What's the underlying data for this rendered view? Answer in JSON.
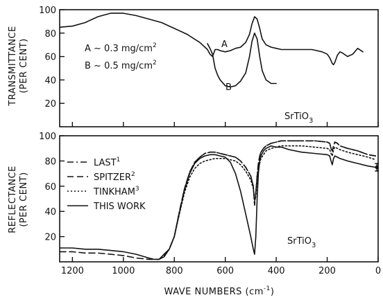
{
  "chart_data": [
    {
      "type": "line",
      "ylabel_line1": "TRANSMITTANCE",
      "ylabel_line2": "(PER CENT)",
      "ylim": [
        0,
        100
      ],
      "yticks": [
        20,
        40,
        60,
        80,
        100
      ],
      "xlim": [
        1250,
        0
      ],
      "annotations": {
        "a_text": "A ~ 0.3 mg/cm",
        "b_text": "B ~ 0.5 mg/cm",
        "superscript": "2",
        "sample": "SrTiO",
        "sample_sub": "3",
        "curve_a_label": "A",
        "curve_b_label": "B"
      },
      "series": [
        {
          "name": "A",
          "x": [
            1250,
            1200,
            1150,
            1100,
            1050,
            1000,
            950,
            900,
            850,
            800,
            750,
            700,
            670,
            660,
            650,
            640,
            630,
            620,
            600,
            580,
            560,
            540,
            520,
            505,
            495,
            485,
            475,
            465,
            455,
            440,
            420,
            400,
            380,
            360,
            340,
            320,
            300,
            280,
            260,
            240,
            220,
            200,
            190,
            180,
            175,
            170,
            160,
            150,
            140,
            120,
            100,
            80,
            60
          ],
          "y": [
            85,
            86,
            89,
            94,
            97,
            97,
            95,
            92,
            89,
            84,
            79,
            72,
            66,
            62,
            60,
            66,
            66,
            65,
            64,
            65,
            67,
            68,
            72,
            79,
            88,
            94,
            92,
            84,
            75,
            70,
            68,
            67,
            66,
            66,
            66,
            66,
            66,
            66,
            66,
            65,
            64,
            62,
            59,
            54,
            53,
            55,
            61,
            64,
            63,
            60,
            62,
            67,
            64
          ]
        },
        {
          "name": "B",
          "x": [
            670,
            660,
            650,
            640,
            630,
            620,
            600,
            580,
            560,
            540,
            520,
            505,
            495,
            485,
            475,
            465,
            455,
            440,
            420,
            400
          ],
          "y": [
            71,
            67,
            62,
            50,
            44,
            40,
            35,
            34,
            35,
            39,
            46,
            60,
            73,
            80,
            75,
            60,
            48,
            40,
            37,
            37
          ]
        }
      ]
    },
    {
      "type": "line",
      "ylabel_line1": "REFLECTANCE",
      "ylabel_line2": "(PER CENT)",
      "xlabel": "WAVE NUMBERS (cm",
      "xlabel_sup": "-1",
      "xlabel_end": ")",
      "ylim": [
        0,
        100
      ],
      "yticks": [
        20,
        40,
        60,
        80,
        100
      ],
      "xlim": [
        1250,
        0
      ],
      "xticks": [
        1200,
        1000,
        800,
        600,
        400,
        200,
        0
      ],
      "sample": "SrTiO",
      "sample_sub": "3",
      "legend_placement": "left",
      "series": [
        {
          "name": "LAST",
          "name_sup": "1",
          "style": "dash-dot",
          "x": [
            850,
            820,
            800,
            780,
            760,
            740,
            720,
            700,
            680,
            660,
            640,
            620,
            600,
            580,
            560,
            540,
            520,
            500,
            490,
            485,
            480,
            475,
            470,
            465,
            460,
            450,
            440,
            420,
            400,
            380,
            350,
            300,
            250,
            200,
            190,
            185,
            180,
            175,
            170,
            160,
            150,
            120,
            80,
            40,
            10
          ],
          "y": [
            4,
            10,
            20,
            40,
            58,
            71,
            79,
            83,
            86,
            87,
            87,
            86,
            85,
            84,
            83,
            80,
            75,
            68,
            60,
            45,
            55,
            68,
            78,
            84,
            87,
            90,
            92,
            94,
            95,
            96,
            96,
            96,
            96,
            95,
            94,
            90,
            88,
            92,
            95,
            94,
            92,
            90,
            88,
            85,
            84
          ]
        },
        {
          "name": "SPITZER",
          "name_sup": "2",
          "style": "dashed",
          "x": [
            1250,
            1200,
            1150,
            1100,
            1050,
            1000,
            950,
            900,
            860,
            850,
            820,
            800,
            780,
            760,
            740,
            720,
            700,
            680,
            660,
            640,
            620,
            600,
            580,
            560,
            540,
            520,
            500,
            490,
            485,
            480,
            475,
            470,
            465,
            460,
            450,
            440,
            420,
            400,
            380,
            350,
            300,
            250,
            200,
            190,
            185,
            180,
            175,
            170,
            160,
            150,
            120,
            80,
            40,
            10
          ],
          "y": [
            8,
            8,
            7,
            7,
            6,
            5,
            3,
            2,
            2,
            4,
            10,
            20,
            40,
            58,
            71,
            79,
            83,
            86,
            87,
            87,
            86,
            85,
            84,
            83,
            80,
            75,
            68,
            60,
            45,
            55,
            68,
            78,
            84,
            87,
            90,
            92,
            94,
            95,
            96,
            96,
            96,
            96,
            95,
            94,
            90,
            88,
            92,
            95,
            94,
            92,
            90,
            88,
            85,
            84
          ]
        },
        {
          "name": "TINKHAM",
          "name_sup": "3",
          "style": "dotted",
          "x": [
            840,
            820,
            800,
            780,
            760,
            740,
            720,
            700,
            680,
            660,
            640,
            620,
            600,
            580,
            560,
            540,
            520,
            500,
            490,
            485,
            480,
            475,
            470,
            460,
            440,
            420,
            400,
            380,
            350,
            300,
            250,
            200,
            190,
            185,
            180,
            175,
            170,
            160,
            150,
            120,
            80,
            40,
            10
          ],
          "y": [
            5,
            10,
            20,
            38,
            55,
            67,
            74,
            78,
            80,
            81,
            82,
            82,
            82,
            81,
            80,
            77,
            72,
            65,
            58,
            48,
            52,
            65,
            74,
            82,
            88,
            90,
            91,
            92,
            92,
            92,
            91,
            90,
            89,
            86,
            84,
            89,
            91,
            90,
            89,
            87,
            85,
            83,
            81
          ]
        },
        {
          "name": "THIS WORK",
          "style": "solid",
          "x": [
            1250,
            1200,
            1150,
            1100,
            1050,
            1000,
            950,
            900,
            880,
            860,
            840,
            820,
            800,
            780,
            760,
            740,
            720,
            700,
            680,
            660,
            640,
            620,
            600,
            580,
            560,
            540,
            520,
            500,
            490,
            485,
            480,
            475,
            470,
            465,
            460,
            450,
            440,
            420,
            400,
            380,
            350,
            300,
            250,
            200,
            190,
            185,
            180,
            175,
            170,
            160,
            150,
            120,
            80,
            40,
            10,
            0
          ],
          "y": [
            11,
            11,
            10,
            10,
            9,
            8,
            6,
            3,
            2,
            2,
            4,
            10,
            20,
            39,
            57,
            70,
            78,
            82,
            84,
            85,
            85,
            84,
            83,
            79,
            70,
            56,
            38,
            20,
            10,
            6,
            20,
            50,
            70,
            80,
            84,
            88,
            90,
            92,
            91,
            91,
            89,
            87,
            86,
            85,
            84,
            80,
            77,
            82,
            84,
            83,
            82,
            80,
            78,
            76,
            75,
            74
          ]
        }
      ],
      "error_bar": {
        "x": 5,
        "y": 75,
        "err": 3
      }
    }
  ]
}
